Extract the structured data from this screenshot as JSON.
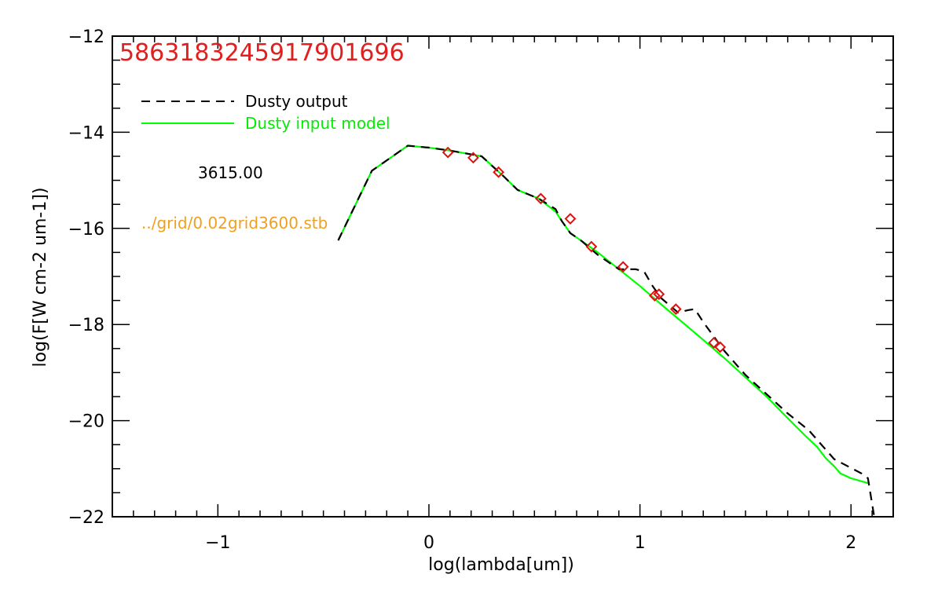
{
  "chart_data": {
    "type": "line",
    "id_label": "5863183245917901696",
    "temperature_label": "3615.00",
    "model_file": "../grid/0.02grid3600.stb",
    "xlabel": "log(lambda[um])",
    "ylabel": "log(F[W cm-2 um-1])",
    "xlim": [
      -1.5,
      2.2
    ],
    "ylim": [
      -22,
      -12
    ],
    "xticks": [
      -1,
      0,
      1,
      2
    ],
    "xtick_labels": [
      "−1",
      "0",
      "1",
      "2"
    ],
    "yticks": [
      -22,
      -20,
      -18,
      -16,
      -14,
      -12
    ],
    "ytick_labels": [
      "−22",
      "−20",
      "−18",
      "−16",
      "−14",
      "−12"
    ],
    "legend_position": "top-left",
    "series": [
      {
        "name": "Dusty output",
        "color": "#000000",
        "style": "dashed",
        "points": [
          [
            -0.43,
            -16.25
          ],
          [
            -0.27,
            -14.8
          ],
          [
            -0.1,
            -14.28
          ],
          [
            0.0,
            -14.32
          ],
          [
            0.1,
            -14.38
          ],
          [
            0.25,
            -14.5
          ],
          [
            0.35,
            -14.9
          ],
          [
            0.42,
            -15.2
          ],
          [
            0.52,
            -15.38
          ],
          [
            0.6,
            -15.6
          ],
          [
            0.63,
            -15.85
          ],
          [
            0.67,
            -16.1
          ],
          [
            0.72,
            -16.25
          ],
          [
            0.8,
            -16.55
          ],
          [
            0.9,
            -16.85
          ],
          [
            0.98,
            -16.85
          ],
          [
            1.02,
            -16.9
          ],
          [
            1.06,
            -17.2
          ],
          [
            1.1,
            -17.45
          ],
          [
            1.18,
            -17.75
          ],
          [
            1.23,
            -17.7
          ],
          [
            1.26,
            -17.68
          ],
          [
            1.3,
            -17.95
          ],
          [
            1.4,
            -18.55
          ],
          [
            1.5,
            -19.05
          ],
          [
            1.6,
            -19.45
          ],
          [
            1.7,
            -19.85
          ],
          [
            1.8,
            -20.2
          ],
          [
            1.87,
            -20.55
          ],
          [
            1.92,
            -20.8
          ],
          [
            2.05,
            -21.1
          ],
          [
            2.08,
            -21.2
          ],
          [
            2.11,
            -22.0
          ]
        ]
      },
      {
        "name": "Dusty input model",
        "color": "#00ff00",
        "style": "solid",
        "points": [
          [
            -0.43,
            -16.25
          ],
          [
            -0.27,
            -14.8
          ],
          [
            -0.1,
            -14.28
          ],
          [
            0.0,
            -14.32
          ],
          [
            0.1,
            -14.38
          ],
          [
            0.25,
            -14.5
          ],
          [
            0.35,
            -14.9
          ],
          [
            0.42,
            -15.2
          ],
          [
            0.52,
            -15.38
          ],
          [
            0.6,
            -15.65
          ],
          [
            0.63,
            -15.85
          ],
          [
            0.67,
            -16.1
          ],
          [
            0.72,
            -16.25
          ],
          [
            0.8,
            -16.5
          ],
          [
            0.9,
            -16.85
          ],
          [
            1.0,
            -17.2
          ],
          [
            1.1,
            -17.58
          ],
          [
            1.2,
            -17.95
          ],
          [
            1.3,
            -18.32
          ],
          [
            1.4,
            -18.7
          ],
          [
            1.5,
            -19.1
          ],
          [
            1.6,
            -19.5
          ],
          [
            1.7,
            -19.95
          ],
          [
            1.78,
            -20.3
          ],
          [
            1.84,
            -20.55
          ],
          [
            1.88,
            -20.78
          ],
          [
            1.92,
            -20.95
          ],
          [
            1.95,
            -21.1
          ],
          [
            2.0,
            -21.2
          ],
          [
            2.08,
            -21.3
          ]
        ]
      },
      {
        "name": "",
        "color": "#dd1111",
        "style": "diamond",
        "points": [
          [
            0.09,
            -14.42
          ],
          [
            0.21,
            -14.53
          ],
          [
            0.33,
            -14.83
          ],
          [
            0.53,
            -15.38
          ],
          [
            0.67,
            -15.8
          ],
          [
            0.77,
            -16.38
          ],
          [
            0.92,
            -16.8
          ],
          [
            1.07,
            -17.4
          ],
          [
            1.09,
            -17.37
          ],
          [
            1.17,
            -17.68
          ],
          [
            1.35,
            -18.38
          ],
          [
            1.38,
            -18.47
          ]
        ]
      }
    ]
  }
}
